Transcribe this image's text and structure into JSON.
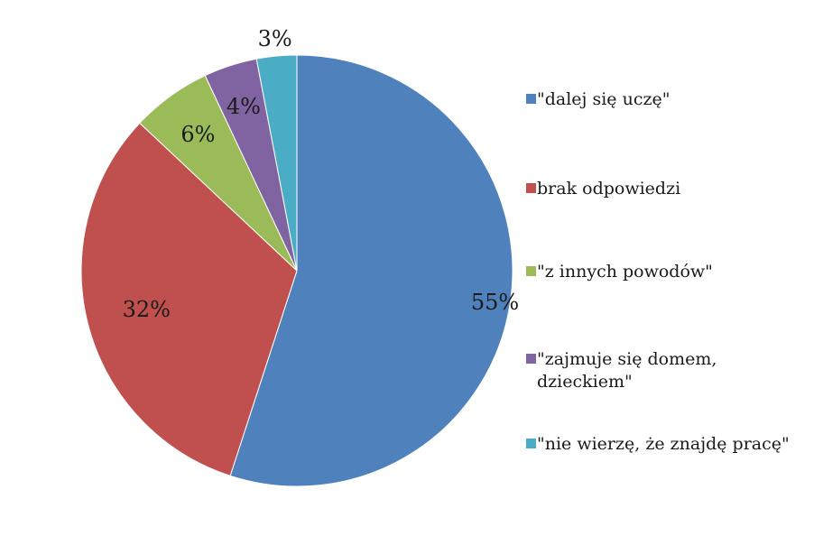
{
  "chart_data": {
    "type": "pie",
    "categories": [
      "\"dalej się uczę\"",
      "brak odpowiedzi",
      "\"z innych powodów\"",
      "\"zajmuje się domem, dzieckiem\"",
      "\"nie wierzę, że znajdę pracę\""
    ],
    "values": [
      55,
      32,
      6,
      4,
      3
    ],
    "data_labels": [
      "55%",
      "32%",
      "6%",
      "4%",
      "3%"
    ],
    "colors": [
      "#4f81bd",
      "#c0504d",
      "#9bbb59",
      "#8064a2",
      "#4bacc6"
    ],
    "legend_position": "right",
    "start_angle": "12 o'clock",
    "direction": "clockwise"
  }
}
